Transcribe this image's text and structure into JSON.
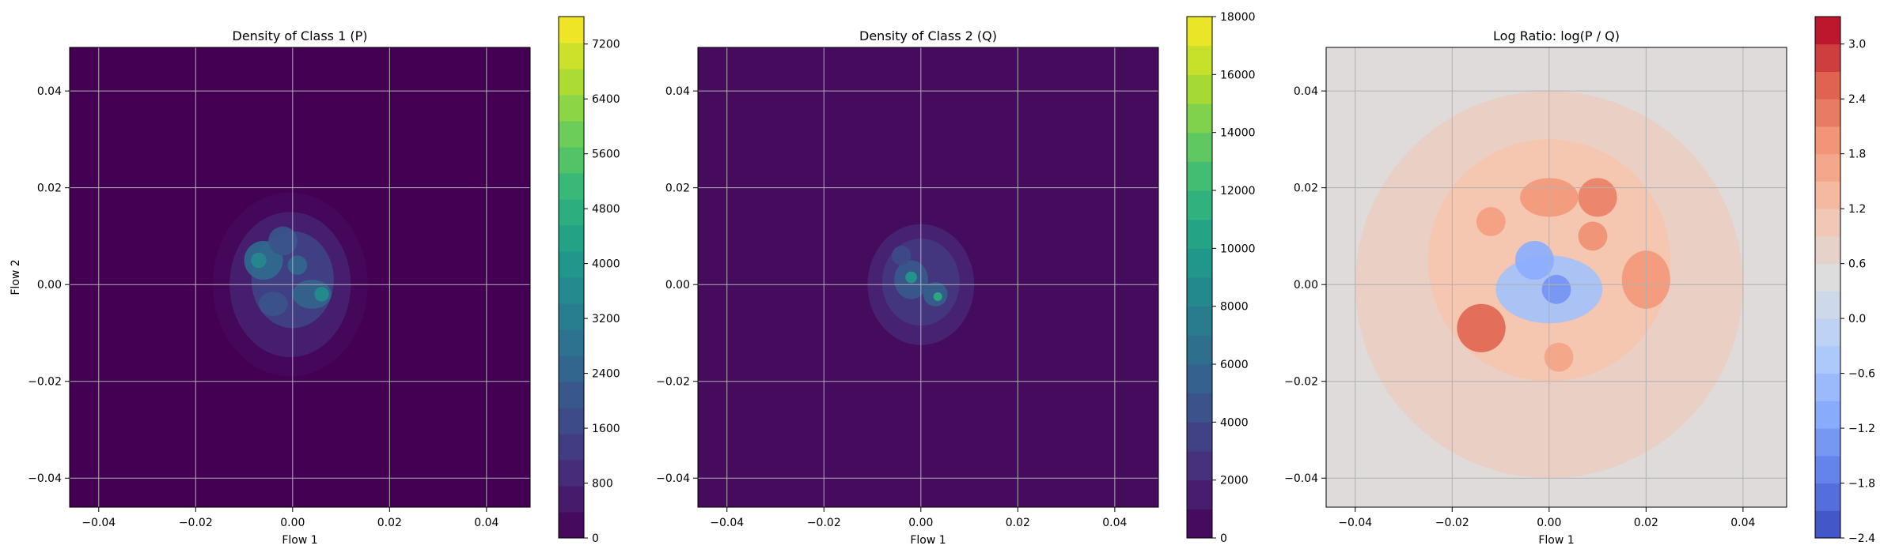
{
  "chart_data": [
    {
      "type": "heatmap",
      "title": "Density of Class 1 (P)",
      "xlabel": "Flow 1",
      "ylabel": "Flow 2",
      "xlim": [
        -0.046,
        0.049
      ],
      "ylim": [
        -0.046,
        0.049
      ],
      "xticks": [
        "−0.04",
        "−0.02",
        "0.00",
        "0.02",
        "0.04"
      ],
      "yticks": [
        "−0.04",
        "−0.02",
        "0.00",
        "0.02",
        "0.04"
      ],
      "grid": true,
      "colormap": "viridis",
      "background_value": 0,
      "colorbar": {
        "min": 0,
        "max": 7600,
        "levels": 20,
        "ticks": [
          0,
          800,
          1600,
          2400,
          3200,
          4000,
          4800,
          5600,
          6400,
          7200
        ],
        "tick_labels": [
          "0",
          "800",
          "1600",
          "2400",
          "3200",
          "4000",
          "4800",
          "5600",
          "6400",
          "7200"
        ]
      },
      "blobs": [
        {
          "x": -0.0005,
          "y": 0.0,
          "rx": 0.016,
          "ry": 0.019,
          "value": 150
        },
        {
          "x": -0.0005,
          "y": 0.0,
          "rx": 0.0125,
          "ry": 0.015,
          "value": 700
        },
        {
          "x": 0.0,
          "y": 0.001,
          "rx": 0.0085,
          "ry": 0.01,
          "value": 1500
        },
        {
          "x": -0.006,
          "y": 0.005,
          "rx": 0.004,
          "ry": 0.004,
          "value": 2600
        },
        {
          "x": -0.007,
          "y": 0.005,
          "rx": 0.0016,
          "ry": 0.0016,
          "value": 3600
        },
        {
          "x": 0.004,
          "y": -0.002,
          "rx": 0.004,
          "ry": 0.003,
          "value": 2400
        },
        {
          "x": 0.006,
          "y": -0.002,
          "rx": 0.0015,
          "ry": 0.0015,
          "value": 3700
        },
        {
          "x": -0.002,
          "y": 0.009,
          "rx": 0.003,
          "ry": 0.003,
          "value": 2000
        },
        {
          "x": -0.004,
          "y": -0.004,
          "rx": 0.003,
          "ry": 0.0025,
          "value": 1900
        },
        {
          "x": 0.001,
          "y": 0.004,
          "rx": 0.002,
          "ry": 0.002,
          "value": 2500
        }
      ]
    },
    {
      "type": "heatmap",
      "title": "Density of Class 2 (Q)",
      "xlabel": "Flow 1",
      "ylabel": "",
      "xlim": [
        -0.046,
        0.049
      ],
      "ylim": [
        -0.046,
        0.049
      ],
      "xticks": [
        "−0.04",
        "−0.02",
        "0.00",
        "0.02",
        "0.04"
      ],
      "yticks": [
        "−0.04",
        "−0.02",
        "0.00",
        "0.02",
        "0.04"
      ],
      "grid": true,
      "colormap": "viridis",
      "background_value": 500,
      "colorbar": {
        "min": 0,
        "max": 18000,
        "levels": 18,
        "ticks": [
          0,
          2000,
          4000,
          6000,
          8000,
          10000,
          12000,
          14000,
          16000,
          18000
        ],
        "tick_labels": [
          "0",
          "2000",
          "4000",
          "6000",
          "8000",
          "10000",
          "12000",
          "14000",
          "16000",
          "18000"
        ]
      },
      "blobs": [
        {
          "x": 0.0,
          "y": 0.0,
          "rx": 0.011,
          "ry": 0.0125,
          "value": 1800
        },
        {
          "x": 0.0,
          "y": 0.0005,
          "rx": 0.008,
          "ry": 0.009,
          "value": 2900
        },
        {
          "x": -0.002,
          "y": 0.001,
          "rx": 0.0035,
          "ry": 0.004,
          "value": 5000
        },
        {
          "x": -0.002,
          "y": 0.0015,
          "rx": 0.0012,
          "ry": 0.0012,
          "value": 9500
        },
        {
          "x": 0.003,
          "y": -0.002,
          "rx": 0.0025,
          "ry": 0.0025,
          "value": 5500
        },
        {
          "x": 0.0035,
          "y": -0.0025,
          "rx": 0.0009,
          "ry": 0.0009,
          "value": 11000
        },
        {
          "x": -0.004,
          "y": 0.006,
          "rx": 0.002,
          "ry": 0.002,
          "value": 4000
        }
      ]
    },
    {
      "type": "heatmap",
      "title": "Log Ratio: log(P / Q)",
      "xlabel": "Flow 1",
      "ylabel": "",
      "xlim": [
        -0.046,
        0.049
      ],
      "ylim": [
        -0.046,
        0.049
      ],
      "xticks": [
        "−0.04",
        "−0.02",
        "0.00",
        "0.02",
        "0.04"
      ],
      "yticks": [
        "−0.04",
        "−0.02",
        "0.00",
        "0.02",
        "0.04"
      ],
      "grid": true,
      "colormap": "coolwarm",
      "background_value": 0.5,
      "colorbar": {
        "min": -2.4,
        "max": 3.3,
        "levels": 19,
        "ticks": [
          -2.4,
          -1.8,
          -1.2,
          -0.6,
          0.0,
          0.6,
          1.2,
          1.8,
          2.4,
          3.0
        ],
        "tick_labels": [
          "−2.4",
          "−1.8",
          "−1.2",
          "−0.6",
          "0.0",
          "0.6",
          "1.2",
          "1.8",
          "2.4",
          "3.0"
        ]
      },
      "blobs": [
        {
          "x": 0.0,
          "y": 0.0,
          "rx": 0.04,
          "ry": 0.04,
          "value": 0.85
        },
        {
          "x": 0.0,
          "y": 0.005,
          "rx": 0.025,
          "ry": 0.025,
          "value": 1.15
        },
        {
          "x": 0.0,
          "y": 0.018,
          "rx": 0.006,
          "ry": 0.004,
          "value": 1.9
        },
        {
          "x": 0.01,
          "y": 0.018,
          "rx": 0.004,
          "ry": 0.004,
          "value": 2.2
        },
        {
          "x": 0.009,
          "y": 0.01,
          "rx": 0.003,
          "ry": 0.003,
          "value": 2.0
        },
        {
          "x": -0.012,
          "y": 0.013,
          "rx": 0.003,
          "ry": 0.003,
          "value": 1.8
        },
        {
          "x": -0.014,
          "y": -0.009,
          "rx": 0.005,
          "ry": 0.005,
          "value": 2.5
        },
        {
          "x": 0.02,
          "y": 0.001,
          "rx": 0.005,
          "ry": 0.006,
          "value": 1.9
        },
        {
          "x": 0.002,
          "y": -0.015,
          "rx": 0.003,
          "ry": 0.003,
          "value": 1.7
        },
        {
          "x": 0.0,
          "y": -0.001,
          "rx": 0.011,
          "ry": 0.007,
          "value": -0.6
        },
        {
          "x": -0.003,
          "y": 0.005,
          "rx": 0.004,
          "ry": 0.004,
          "value": -1.0
        },
        {
          "x": 0.0015,
          "y": -0.001,
          "rx": 0.003,
          "ry": 0.003,
          "value": -1.4
        }
      ]
    }
  ]
}
